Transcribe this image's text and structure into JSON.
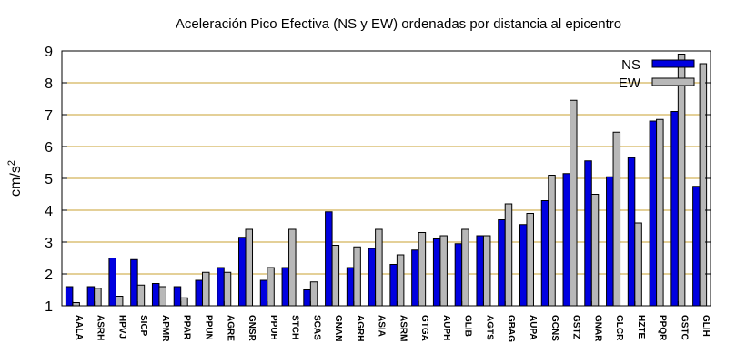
{
  "chart_data": {
    "type": "bar",
    "title": "Aceleración Pico Efectiva (NS y EW) ordenadas por distancia al epicentro",
    "xlabel": "",
    "ylabel": "cm/s",
    "ylabel_superscript": "2",
    "ylim": [
      1,
      9
    ],
    "yticks": [
      "1",
      "2",
      "3",
      "4",
      "5",
      "6",
      "7",
      "8",
      "9"
    ],
    "grid": "horizontal",
    "legend_position": "top-right",
    "categories": [
      "AALA",
      "ASRH",
      "HPVJ",
      "SICP",
      "APMR",
      "PPAR",
      "PPUN",
      "AGRE",
      "GNSR",
      "PPUH",
      "STCH",
      "SCAS",
      "GNAN",
      "AGRH",
      "ASIA",
      "ASRM",
      "GTGA",
      "AUPH",
      "GLIB",
      "AGTS",
      "GBAG",
      "AUPA",
      "GCNS",
      "GSTZ",
      "GNAR",
      "GLCR",
      "HZTE",
      "PPQR",
      "GSTC",
      "GLIH"
    ],
    "series": [
      {
        "name": "NS",
        "color": "#0000e0",
        "values": [
          1.6,
          1.6,
          2.5,
          2.45,
          1.7,
          1.6,
          1.8,
          2.2,
          3.15,
          1.8,
          2.2,
          1.5,
          3.95,
          2.2,
          2.8,
          2.3,
          2.75,
          3.1,
          2.95,
          3.2,
          3.7,
          3.55,
          4.3,
          5.15,
          5.55,
          5.05,
          5.65,
          6.8,
          7.1,
          4.75
        ]
      },
      {
        "name": "EW",
        "color": "#b8b8b8",
        "values": [
          1.1,
          1.55,
          1.3,
          1.65,
          1.6,
          1.25,
          2.05,
          2.05,
          3.4,
          2.2,
          3.4,
          1.75,
          2.9,
          2.85,
          3.4,
          2.6,
          3.3,
          3.2,
          3.4,
          3.2,
          4.2,
          3.9,
          5.1,
          7.45,
          4.5,
          6.45,
          3.6,
          6.85,
          8.9,
          8.6
        ]
      }
    ]
  }
}
